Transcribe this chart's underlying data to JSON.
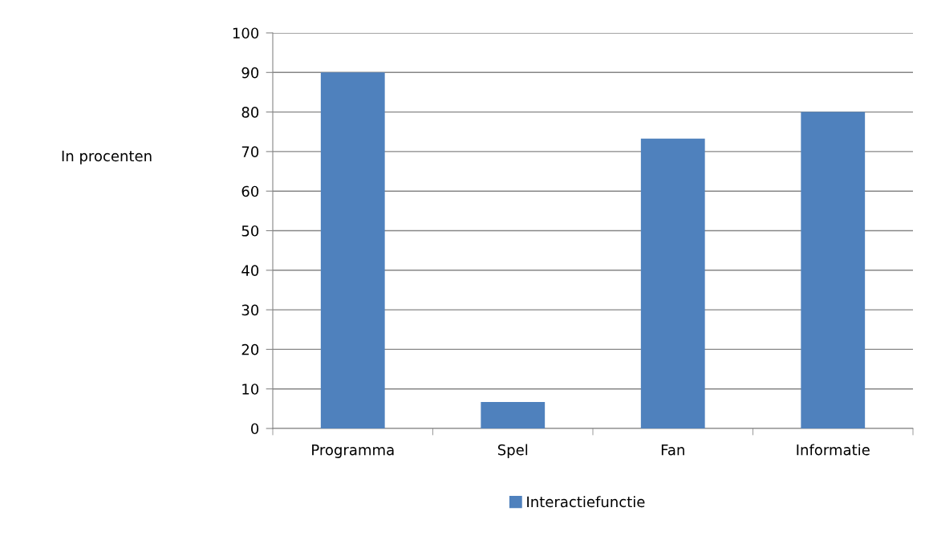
{
  "chart_data": {
    "type": "bar",
    "annotations": [
      "In procenten"
    ],
    "categories": [
      "Programma",
      "Spel",
      "Fan",
      "Informatie"
    ],
    "series": [
      {
        "name": "Interactiefunctie",
        "color": "#4f81bd",
        "values": [
          90,
          6.7,
          73.3,
          80
        ]
      }
    ],
    "ylim": [
      0,
      100
    ],
    "yticks": [
      0,
      10,
      20,
      30,
      40,
      50,
      60,
      70,
      80,
      90,
      100
    ],
    "grid": "y",
    "legend": "bottom"
  }
}
